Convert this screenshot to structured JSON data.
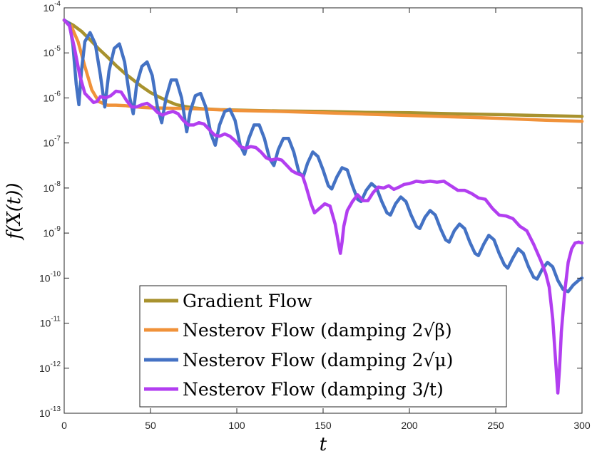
{
  "chart_data": {
    "type": "line",
    "title": "",
    "xlabel": "t",
    "ylabel": "f(X(t))",
    "xlim": [
      0,
      300
    ],
    "ylim_log10": [
      -13,
      -4
    ],
    "y_scale": "log",
    "grid": false,
    "legend_position": "lower-center",
    "x_ticks": [
      0,
      50,
      100,
      150,
      200,
      250,
      300
    ],
    "y_ticks_exponents": [
      -4,
      -5,
      -6,
      -7,
      -8,
      -9,
      -10,
      -11,
      -12,
      -13
    ],
    "y_tick_base": "10",
    "series": [
      {
        "name": "Gradient Flow",
        "color": "#a8922e",
        "points_log10": [
          [
            0,
            -4.28
          ],
          [
            5,
            -4.38
          ],
          [
            10,
            -4.52
          ],
          [
            15,
            -4.71
          ],
          [
            20,
            -4.91
          ],
          [
            25,
            -5.09
          ],
          [
            30,
            -5.28
          ],
          [
            35,
            -5.45
          ],
          [
            40,
            -5.6
          ],
          [
            45,
            -5.75
          ],
          [
            50,
            -5.88
          ],
          [
            55,
            -5.98
          ],
          [
            60,
            -6.07
          ],
          [
            65,
            -6.15
          ],
          [
            70,
            -6.19
          ],
          [
            75,
            -6.22
          ],
          [
            80,
            -6.24
          ],
          [
            90,
            -6.26
          ],
          [
            100,
            -6.27
          ],
          [
            125,
            -6.29
          ],
          [
            150,
            -6.3
          ],
          [
            175,
            -6.32
          ],
          [
            200,
            -6.33
          ],
          [
            225,
            -6.35
          ],
          [
            250,
            -6.37
          ],
          [
            275,
            -6.39
          ],
          [
            300,
            -6.41
          ]
        ]
      },
      {
        "name": "Nesterov Flow (damping 2√β)",
        "color": "#f0923a",
        "points_log10": [
          [
            0,
            -4.27
          ],
          [
            4,
            -4.4
          ],
          [
            8,
            -4.75
          ],
          [
            12,
            -5.3
          ],
          [
            16,
            -5.82
          ],
          [
            20,
            -6.08
          ],
          [
            25,
            -6.16
          ],
          [
            30,
            -6.16
          ],
          [
            35,
            -6.17
          ],
          [
            40,
            -6.19
          ],
          [
            45,
            -6.21
          ],
          [
            50,
            -6.22
          ],
          [
            75,
            -6.24
          ],
          [
            100,
            -6.28
          ],
          [
            125,
            -6.3
          ],
          [
            150,
            -6.33
          ],
          [
            175,
            -6.36
          ],
          [
            200,
            -6.39
          ],
          [
            225,
            -6.42
          ],
          [
            250,
            -6.45
          ],
          [
            275,
            -6.49
          ],
          [
            300,
            -6.52
          ]
        ]
      },
      {
        "name": "Nesterov Flow (damping 2√μ)",
        "color": "#4472c4",
        "points_log10": [
          [
            0,
            -4.27
          ],
          [
            3,
            -4.35
          ],
          [
            5,
            -4.8
          ],
          [
            7,
            -5.7
          ],
          [
            8.5,
            -6.15
          ],
          [
            10,
            -5.4
          ],
          [
            12,
            -4.75
          ],
          [
            15,
            -4.55
          ],
          [
            18,
            -4.8
          ],
          [
            21,
            -5.5
          ],
          [
            23.5,
            -6.2
          ],
          [
            26,
            -5.4
          ],
          [
            29,
            -4.9
          ],
          [
            32,
            -4.8
          ],
          [
            35,
            -5.2
          ],
          [
            38,
            -6.0
          ],
          [
            40,
            -6.35
          ],
          [
            42,
            -5.7
          ],
          [
            45,
            -5.3
          ],
          [
            48,
            -5.2
          ],
          [
            51,
            -5.5
          ],
          [
            54,
            -6.2
          ],
          [
            56.5,
            -6.55
          ],
          [
            59,
            -6.0
          ],
          [
            62,
            -5.6
          ],
          [
            65,
            -5.6
          ],
          [
            68,
            -6.0
          ],
          [
            71,
            -6.75
          ],
          [
            73,
            -6.3
          ],
          [
            76,
            -5.95
          ],
          [
            79,
            -5.9
          ],
          [
            82,
            -6.2
          ],
          [
            85,
            -6.8
          ],
          [
            87.5,
            -7.05
          ],
          [
            90,
            -6.6
          ],
          [
            93,
            -6.3
          ],
          [
            96,
            -6.25
          ],
          [
            99,
            -6.5
          ],
          [
            102,
            -7.05
          ],
          [
            104.5,
            -7.25
          ],
          [
            107,
            -6.9
          ],
          [
            110,
            -6.6
          ],
          [
            113,
            -6.6
          ],
          [
            116,
            -6.9
          ],
          [
            119,
            -7.35
          ],
          [
            121.5,
            -7.5
          ],
          [
            124,
            -7.15
          ],
          [
            127,
            -6.9
          ],
          [
            130,
            -6.9
          ],
          [
            133,
            -7.2
          ],
          [
            136,
            -7.65
          ],
          [
            138.5,
            -7.75
          ],
          [
            141,
            -7.45
          ],
          [
            144,
            -7.2
          ],
          [
            147,
            -7.3
          ],
          [
            150,
            -7.6
          ],
          [
            153,
            -7.95
          ],
          [
            155,
            -8.02
          ],
          [
            158,
            -7.75
          ],
          [
            161,
            -7.55
          ],
          [
            164,
            -7.6
          ],
          [
            167,
            -7.95
          ],
          [
            170,
            -8.25
          ],
          [
            172,
            -8.3
          ],
          [
            175,
            -8.05
          ],
          [
            178,
            -7.9
          ],
          [
            181,
            -8.0
          ],
          [
            184,
            -8.3
          ],
          [
            187,
            -8.55
          ],
          [
            189,
            -8.6
          ],
          [
            192,
            -8.35
          ],
          [
            195,
            -8.2
          ],
          [
            198,
            -8.3
          ],
          [
            201,
            -8.6
          ],
          [
            204,
            -8.85
          ],
          [
            206,
            -8.9
          ],
          [
            209,
            -8.65
          ],
          [
            212,
            -8.5
          ],
          [
            215,
            -8.6
          ],
          [
            218,
            -8.9
          ],
          [
            221,
            -9.15
          ],
          [
            223,
            -9.2
          ],
          [
            226,
            -8.95
          ],
          [
            229,
            -8.8
          ],
          [
            232,
            -8.9
          ],
          [
            235,
            -9.2
          ],
          [
            238,
            -9.45
          ],
          [
            240,
            -9.5
          ],
          [
            243,
            -9.25
          ],
          [
            246,
            -9.05
          ],
          [
            249,
            -9.15
          ],
          [
            252,
            -9.45
          ],
          [
            255,
            -9.7
          ],
          [
            257,
            -9.78
          ],
          [
            260,
            -9.55
          ],
          [
            263,
            -9.35
          ],
          [
            266,
            -9.45
          ],
          [
            269,
            -9.75
          ],
          [
            272,
            -9.98
          ],
          [
            274,
            -10.02
          ],
          [
            277,
            -9.8
          ],
          [
            280,
            -9.65
          ],
          [
            283,
            -9.75
          ],
          [
            286,
            -10.05
          ],
          [
            289,
            -10.25
          ],
          [
            292,
            -10.3
          ],
          [
            295,
            -10.15
          ],
          [
            298,
            -10.05
          ],
          [
            300,
            -10.0
          ]
        ]
      },
      {
        "name": "Nesterov Flow (damping 3/t)",
        "color": "#b23ef0",
        "points_log10": [
          [
            0,
            -4.27
          ],
          [
            3,
            -4.4
          ],
          [
            6,
            -4.9
          ],
          [
            9,
            -5.5
          ],
          [
            12,
            -5.9
          ],
          [
            15,
            -6.02
          ],
          [
            17,
            -6.1
          ],
          [
            19,
            -6.08
          ],
          [
            21,
            -5.97
          ],
          [
            24,
            -6.0
          ],
          [
            27,
            -5.95
          ],
          [
            30,
            -5.85
          ],
          [
            33,
            -5.87
          ],
          [
            36,
            -6.05
          ],
          [
            39,
            -6.2
          ],
          [
            42,
            -6.2
          ],
          [
            45,
            -6.15
          ],
          [
            48,
            -6.12
          ],
          [
            51,
            -6.2
          ],
          [
            54,
            -6.32
          ],
          [
            57,
            -6.38
          ],
          [
            60,
            -6.33
          ],
          [
            63,
            -6.3
          ],
          [
            66,
            -6.35
          ],
          [
            69,
            -6.5
          ],
          [
            72,
            -6.6
          ],
          [
            75,
            -6.6
          ],
          [
            78,
            -6.55
          ],
          [
            81,
            -6.58
          ],
          [
            84,
            -6.7
          ],
          [
            87,
            -6.82
          ],
          [
            90,
            -6.85
          ],
          [
            93,
            -6.8
          ],
          [
            96,
            -6.85
          ],
          [
            99,
            -6.95
          ],
          [
            102,
            -7.08
          ],
          [
            105,
            -7.12
          ],
          [
            108,
            -7.08
          ],
          [
            111,
            -7.1
          ],
          [
            114,
            -7.2
          ],
          [
            117,
            -7.33
          ],
          [
            120,
            -7.38
          ],
          [
            123,
            -7.35
          ],
          [
            126,
            -7.38
          ],
          [
            129,
            -7.5
          ],
          [
            132,
            -7.62
          ],
          [
            135,
            -7.68
          ],
          [
            138,
            -7.72
          ],
          [
            140,
            -7.95
          ],
          [
            143,
            -8.35
          ],
          [
            145,
            -8.55
          ],
          [
            148,
            -8.45
          ],
          [
            151,
            -8.35
          ],
          [
            154,
            -8.4
          ],
          [
            157,
            -8.8
          ],
          [
            159,
            -9.25
          ],
          [
            160,
            -9.45
          ],
          [
            161,
            -9.2
          ],
          [
            162,
            -8.85
          ],
          [
            164,
            -8.5
          ],
          [
            167,
            -8.3
          ],
          [
            170,
            -8.15
          ],
          [
            173,
            -8.28
          ],
          [
            176,
            -8.28
          ],
          [
            179,
            -8.1
          ],
          [
            182,
            -7.98
          ],
          [
            185,
            -8.0
          ],
          [
            188,
            -7.95
          ],
          [
            191,
            -8.03
          ],
          [
            194,
            -7.98
          ],
          [
            197,
            -7.92
          ],
          [
            200,
            -7.9
          ],
          [
            204,
            -7.85
          ],
          [
            208,
            -7.87
          ],
          [
            212,
            -7.85
          ],
          [
            216,
            -7.87
          ],
          [
            220,
            -7.85
          ],
          [
            224,
            -7.95
          ],
          [
            228,
            -8.05
          ],
          [
            232,
            -8.05
          ],
          [
            236,
            -8.12
          ],
          [
            240,
            -8.22
          ],
          [
            244,
            -8.25
          ],
          [
            248,
            -8.45
          ],
          [
            252,
            -8.6
          ],
          [
            256,
            -8.62
          ],
          [
            260,
            -8.68
          ],
          [
            264,
            -8.85
          ],
          [
            268,
            -8.95
          ],
          [
            272,
            -9.25
          ],
          [
            276,
            -9.6
          ],
          [
            279,
            -9.9
          ],
          [
            281,
            -10.2
          ],
          [
            283,
            -10.9
          ],
          [
            285,
            -12.0
          ],
          [
            286,
            -12.55
          ],
          [
            287,
            -12.0
          ],
          [
            288,
            -11.2
          ],
          [
            290,
            -10.3
          ],
          [
            292,
            -9.65
          ],
          [
            294,
            -9.35
          ],
          [
            296,
            -9.22
          ],
          [
            298,
            -9.2
          ],
          [
            300,
            -9.22
          ]
        ]
      }
    ]
  }
}
